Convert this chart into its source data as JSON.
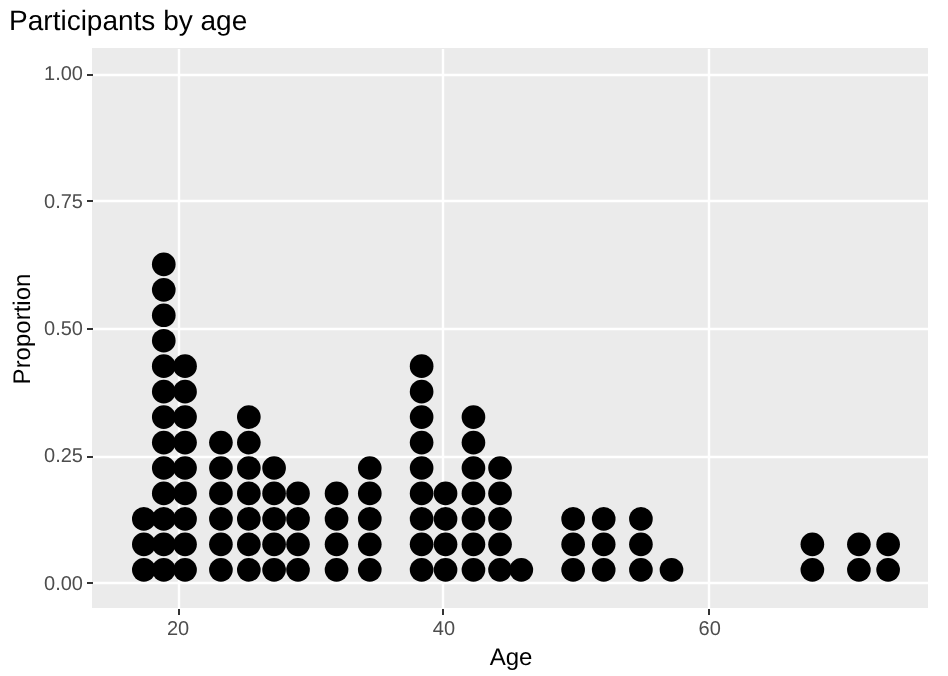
{
  "chart_data": {
    "type": "scatter",
    "title": "Participants by age",
    "xlabel": "Age",
    "ylabel": "Proportion",
    "xlim": [
      13.6,
      76.5
    ],
    "xticks": [
      20,
      40,
      60
    ],
    "ylim": [
      -0.05,
      1.05
    ],
    "yticks": [
      {
        "value": 0,
        "label": "0.00"
      },
      {
        "value": 0.25,
        "label": "0.25"
      },
      {
        "value": 0.5,
        "label": "0.50"
      },
      {
        "value": 0.75,
        "label": "0.75"
      },
      {
        "value": 1,
        "label": "1.00"
      }
    ],
    "grid": true,
    "marker": "circle",
    "series": [
      {
        "color": "#000000",
        "x": [
          17.5,
          17.5,
          17.5,
          19,
          19,
          19,
          19,
          19,
          19,
          19,
          19,
          19,
          19,
          19,
          19,
          19,
          20.6,
          20.6,
          20.6,
          20.6,
          20.6,
          20.6,
          20.6,
          20.6,
          20.6,
          23.3,
          23.3,
          23.3,
          23.3,
          23.3,
          23.3,
          25.4,
          25.4,
          25.4,
          25.4,
          25.4,
          25.4,
          25.4,
          27.3,
          27.3,
          27.3,
          27.3,
          27.3,
          29.1,
          29.1,
          29.1,
          29.1,
          32,
          32,
          32,
          32,
          34.5,
          34.5,
          34.5,
          34.5,
          34.5,
          38.4,
          38.4,
          38.4,
          38.4,
          38.4,
          38.4,
          38.4,
          38.4,
          38.4,
          40.2,
          40.2,
          40.2,
          40.2,
          42.3,
          42.3,
          42.3,
          42.3,
          42.3,
          42.3,
          42.3,
          44.3,
          44.3,
          44.3,
          44.3,
          44.3,
          45.9,
          49.8,
          49.8,
          49.8,
          52.1,
          52.1,
          52.1,
          54.9,
          54.9,
          54.9,
          57.2,
          67.8,
          67.8,
          71.3,
          71.3,
          73.5,
          73.5
        ],
        "values": [
          0.025,
          0.075,
          0.125,
          0.025,
          0.075,
          0.125,
          0.175,
          0.225,
          0.275,
          0.325,
          0.375,
          0.425,
          0.475,
          0.525,
          0.575,
          0.625,
          0.025,
          0.075,
          0.125,
          0.175,
          0.225,
          0.275,
          0.325,
          0.375,
          0.425,
          0.025,
          0.075,
          0.125,
          0.175,
          0.225,
          0.275,
          0.025,
          0.075,
          0.125,
          0.175,
          0.225,
          0.275,
          0.325,
          0.025,
          0.075,
          0.125,
          0.175,
          0.225,
          0.025,
          0.075,
          0.125,
          0.175,
          0.025,
          0.075,
          0.125,
          0.175,
          0.025,
          0.075,
          0.125,
          0.175,
          0.225,
          0.025,
          0.075,
          0.125,
          0.175,
          0.225,
          0.275,
          0.325,
          0.375,
          0.425,
          0.025,
          0.075,
          0.125,
          0.175,
          0.025,
          0.075,
          0.125,
          0.175,
          0.225,
          0.275,
          0.325,
          0.025,
          0.075,
          0.125,
          0.175,
          0.225,
          0.025,
          0.025,
          0.075,
          0.125,
          0.025,
          0.075,
          0.125,
          0.025,
          0.075,
          0.125,
          0.025,
          0.025,
          0.075,
          0.025,
          0.075,
          0.025,
          0.075
        ]
      }
    ]
  }
}
